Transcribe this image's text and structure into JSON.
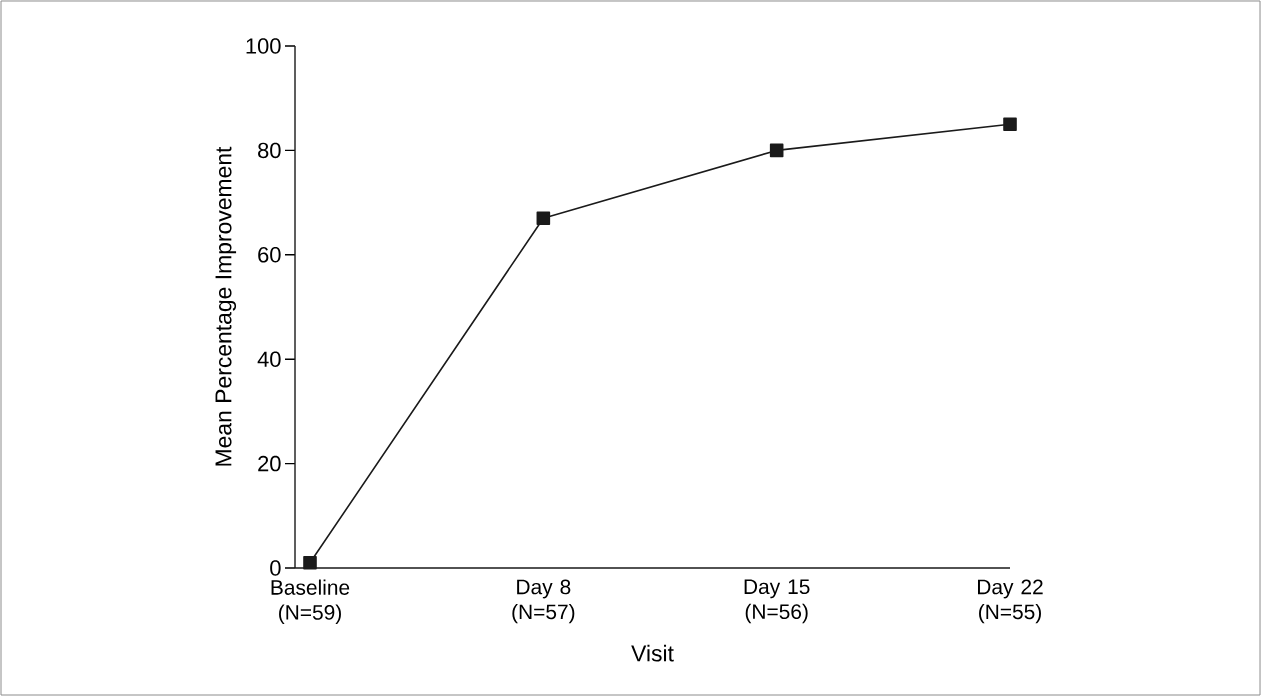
{
  "chart_data": {
    "type": "line",
    "xlabel": "Visit",
    "ylabel": "Mean Percentage Improvement",
    "categories": [
      "Baseline (N=59)",
      "Day 8 (N=57)",
      "Day 15 (N=56)",
      "Day 22 (N=55)"
    ],
    "values": [
      1,
      67,
      80,
      85
    ],
    "color": "#1a1a1a",
    "marker": "square",
    "line_style": "solid",
    "ylim": [
      0,
      100
    ],
    "yticks": [
      0,
      20,
      40,
      60,
      80,
      100
    ]
  }
}
